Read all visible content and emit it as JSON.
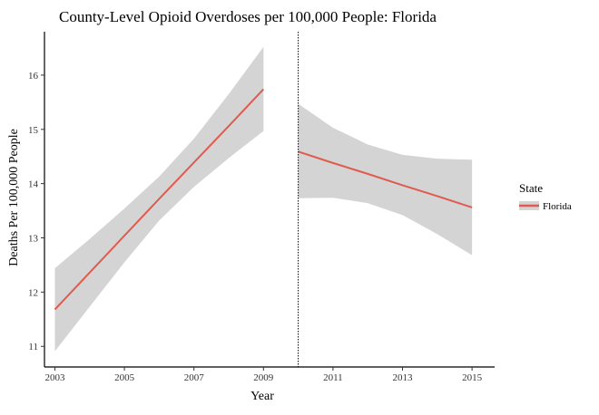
{
  "chart_data": {
    "type": "line",
    "title": "County-Level Opioid Overdoses per 100,000 People: Florida",
    "xlabel": "Year",
    "ylabel": "Deaths Per 100,000 People",
    "xlim": [
      2002.7,
      2015.65
    ],
    "ylim": [
      10.62,
      16.8
    ],
    "x_ticks": [
      2003,
      2005,
      2007,
      2009,
      2011,
      2013,
      2015
    ],
    "y_ticks": [
      11,
      12,
      13,
      14,
      15,
      16
    ],
    "grid": false,
    "vline": {
      "x": 2010,
      "style": "dotted"
    },
    "legend": {
      "title": "State",
      "position": "right",
      "entries": [
        "Florida"
      ]
    },
    "colors": {
      "line": "#e05a4f",
      "band": "#d4d4d4",
      "axis": "#000000"
    },
    "series": [
      {
        "name": "Florida",
        "segments": [
          {
            "x": [
              2003,
              2004,
              2005,
              2006,
              2007,
              2008,
              2009
            ],
            "y": [
              11.68,
              12.36,
              13.04,
              13.72,
              14.39,
              15.06,
              15.74
            ],
            "lower": [
              10.91,
              11.73,
              12.55,
              13.32,
              13.94,
              14.47,
              14.97
            ],
            "upper": [
              12.44,
              12.98,
              13.54,
              14.13,
              14.83,
              15.65,
              16.52
            ]
          },
          {
            "x": [
              2010,
              2011,
              2012,
              2013,
              2014,
              2015
            ],
            "y": [
              14.59,
              14.38,
              14.18,
              13.97,
              13.77,
              13.56
            ],
            "lower": [
              13.73,
              13.74,
              13.64,
              13.42,
              13.07,
              12.68
            ],
            "upper": [
              15.47,
              15.03,
              14.72,
              14.53,
              14.46,
              14.44
            ]
          }
        ]
      }
    ]
  }
}
